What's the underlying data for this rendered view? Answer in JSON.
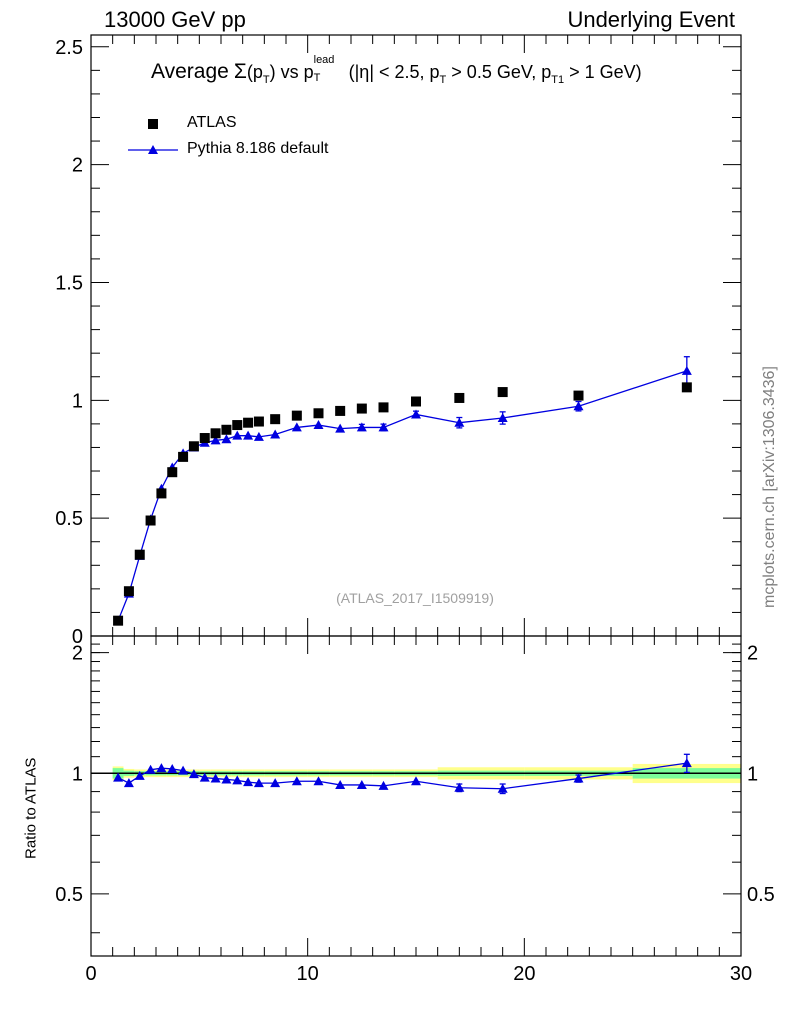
{
  "header": {
    "left": "13000 GeV pp",
    "right": "Underlying Event"
  },
  "watermark": "mcplots.cern.ch [arXiv:1306.3436]",
  "analysis_id": "(ATLAS_2017_I1509919)",
  "title": {
    "prefix": "Average",
    "sigma": "Σ",
    "pt_open": "(p",
    "pt_sub": "T",
    "pt_close": ")",
    "vs": "vs p",
    "lead_sup": "lead",
    "lead_sub": "T",
    "cuts_open": "(|η| < 2.5, p",
    "cut_pt_sub": "T",
    "cut_pt_val": "> 0.5 GeV, p",
    "cut_pt1_sub": "T1",
    "cut_pt1_val": "> 1 GeV)"
  },
  "legend": {
    "data_label": "ATLAS",
    "mc_label": "Pythia 8.186 default"
  },
  "ratio_ylabel": "Ratio to ATLAS",
  "colors": {
    "data": "#000000",
    "mc": "#0000e0",
    "band_green": "#7cfc9a",
    "band_yellow": "#ffff8c"
  },
  "chart_data": [
    {
      "type": "scatter",
      "panel": "main",
      "xlim": [
        0,
        30
      ],
      "ylim": [
        0,
        2.55
      ],
      "y_ticks": [
        0,
        0.5,
        1,
        1.5,
        2,
        2.5
      ],
      "y_tick_labels": [
        "0",
        "0.5",
        "1",
        "1.5",
        "2",
        "2.5"
      ],
      "series": [
        {
          "name": "ATLAS",
          "marker": "square",
          "x": [
            1.25,
            1.75,
            2.25,
            2.75,
            3.25,
            3.75,
            4.25,
            4.75,
            5.25,
            5.75,
            6.25,
            6.75,
            7.25,
            7.75,
            8.5,
            9.5,
            10.5,
            11.5,
            12.5,
            13.5,
            15,
            17,
            19,
            22.5,
            27.5
          ],
          "y": [
            0.065,
            0.19,
            0.345,
            0.49,
            0.605,
            0.695,
            0.76,
            0.805,
            0.84,
            0.86,
            0.875,
            0.895,
            0.905,
            0.91,
            0.92,
            0.935,
            0.945,
            0.955,
            0.965,
            0.97,
            0.995,
            1.01,
            1.035,
            1.02,
            1.055
          ]
        },
        {
          "name": "Pythia 8.186 default",
          "marker": "triangle",
          "x": [
            1.25,
            1.75,
            2.25,
            2.75,
            3.25,
            3.75,
            4.25,
            4.75,
            5.25,
            5.75,
            6.25,
            6.75,
            7.25,
            7.75,
            8.5,
            9.5,
            10.5,
            11.5,
            12.5,
            13.5,
            15,
            17,
            19,
            22.5,
            27.5
          ],
          "y": [
            0.065,
            0.18,
            0.34,
            0.495,
            0.625,
            0.715,
            0.775,
            0.8,
            0.82,
            0.83,
            0.835,
            0.85,
            0.85,
            0.845,
            0.855,
            0.885,
            0.895,
            0.88,
            0.885,
            0.885,
            0.94,
            0.905,
            0.925,
            0.975,
            1.125
          ],
          "yerr": [
            0.005,
            0.006,
            0.006,
            0.006,
            0.006,
            0.006,
            0.006,
            0.006,
            0.006,
            0.007,
            0.007,
            0.007,
            0.007,
            0.008,
            0.009,
            0.01,
            0.011,
            0.012,
            0.013,
            0.014,
            0.014,
            0.022,
            0.026,
            0.02,
            0.06
          ]
        }
      ]
    },
    {
      "type": "scatter",
      "panel": "ratio",
      "xlim": [
        0,
        30
      ],
      "ylim": [
        0.35,
        2.2
      ],
      "x_ticks": [
        0,
        10,
        20,
        30
      ],
      "x_tick_labels": [
        "0",
        "10",
        "20",
        "30"
      ],
      "y_ticks": [
        0.5,
        1,
        2
      ],
      "y_tick_labels": [
        "0.5",
        "1",
        "2"
      ],
      "bands": {
        "edges": [
          1,
          1.5,
          2,
          2.5,
          3,
          3.5,
          4,
          4.5,
          5,
          5.5,
          6,
          6.5,
          7,
          7.5,
          8,
          9,
          10,
          11,
          12,
          13,
          14,
          16,
          18,
          20,
          25,
          30
        ],
        "green_halfwidth": [
          0.03,
          0.015,
          0.012,
          0.012,
          0.012,
          0.012,
          0.012,
          0.012,
          0.012,
          0.012,
          0.012,
          0.012,
          0.012,
          0.012,
          0.012,
          0.012,
          0.012,
          0.012,
          0.012,
          0.012,
          0.012,
          0.015,
          0.015,
          0.015,
          0.03
        ],
        "yellow_halfwidth": [
          0.04,
          0.025,
          0.022,
          0.022,
          0.022,
          0.022,
          0.022,
          0.022,
          0.022,
          0.022,
          0.022,
          0.022,
          0.022,
          0.022,
          0.022,
          0.022,
          0.022,
          0.022,
          0.022,
          0.022,
          0.022,
          0.035,
          0.035,
          0.035,
          0.055
        ]
      },
      "series": [
        {
          "name": "Pythia 8.186 default",
          "marker": "triangle",
          "x": [
            1.25,
            1.75,
            2.25,
            2.75,
            3.25,
            3.75,
            4.25,
            4.75,
            5.25,
            5.75,
            6.25,
            6.75,
            7.25,
            7.75,
            8.5,
            9.5,
            10.5,
            11.5,
            12.5,
            13.5,
            15,
            17,
            19,
            22.5,
            27.5
          ],
          "y": [
            0.975,
            0.945,
            0.985,
            1.02,
            1.03,
            1.025,
            1.015,
            0.995,
            0.975,
            0.97,
            0.965,
            0.96,
            0.95,
            0.945,
            0.945,
            0.955,
            0.955,
            0.935,
            0.935,
            0.93,
            0.955,
            0.92,
            0.915,
            0.97,
            1.06
          ],
          "yerr": [
            0.01,
            0.01,
            0.008,
            0.008,
            0.008,
            0.008,
            0.008,
            0.008,
            0.008,
            0.008,
            0.008,
            0.008,
            0.008,
            0.008,
            0.009,
            0.01,
            0.011,
            0.012,
            0.013,
            0.014,
            0.015,
            0.02,
            0.025,
            0.02,
            0.055
          ]
        }
      ]
    }
  ]
}
